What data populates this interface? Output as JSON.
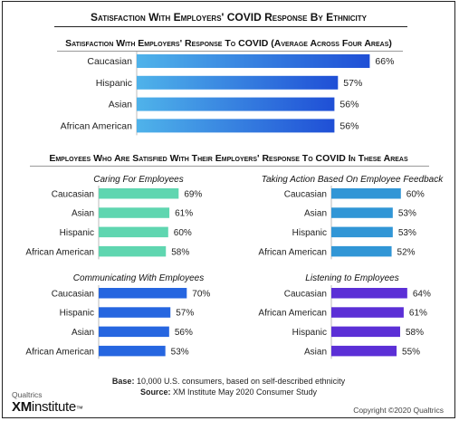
{
  "header": {
    "title": "Satisfaction With Employers' COVID Response By Ethnicity",
    "overall_title": "Satisfaction With Employers' Response To COVID (Average Across Four Areas)",
    "areas_title": "Employees Who Are Satisfied With Their Employers' Response To COVID In These Areas"
  },
  "colors": {
    "overall": "#1f4fd6",
    "caring": "#5fd6b0",
    "action": "#3196d6",
    "communicating": "#2666e0",
    "listening": "#5b2fd6"
  },
  "chart_data": [
    {
      "type": "bar",
      "orientation": "horizontal",
      "title": "Satisfaction With Employers' Response To COVID (Average Across Four Areas)",
      "categories": [
        "Caucasian",
        "Hispanic",
        "Asian",
        "African American"
      ],
      "values": [
        66,
        57,
        56,
        56
      ],
      "value_labels": [
        "66%",
        "57%",
        "56%",
        "56%"
      ]
    },
    {
      "type": "bar",
      "orientation": "horizontal",
      "title": "Caring For Employees",
      "categories": [
        "Caucasian",
        "Asian",
        "Hispanic",
        "African American"
      ],
      "values": [
        69,
        61,
        60,
        58
      ],
      "value_labels": [
        "69%",
        "61%",
        "60%",
        "58%"
      ]
    },
    {
      "type": "bar",
      "orientation": "horizontal",
      "title": "Taking Action Based On Employee Feedback",
      "categories": [
        "Caucasian",
        "Asian",
        "Hispanic",
        "African American"
      ],
      "values": [
        60,
        53,
        53,
        52
      ],
      "value_labels": [
        "60%",
        "53%",
        "53%",
        "52%"
      ]
    },
    {
      "type": "bar",
      "orientation": "horizontal",
      "title": "Communicating With Employees",
      "categories": [
        "Caucasian",
        "Hispanic",
        "Asian",
        "African American"
      ],
      "values": [
        70,
        57,
        56,
        53
      ],
      "value_labels": [
        "70%",
        "57%",
        "56%",
        "53%"
      ]
    },
    {
      "type": "bar",
      "orientation": "horizontal",
      "title": "Listening to Employees",
      "categories": [
        "Caucasian",
        "African American",
        "Hispanic",
        "Asian"
      ],
      "values": [
        64,
        61,
        58,
        55
      ],
      "value_labels": [
        "64%",
        "61%",
        "58%",
        "55%"
      ]
    }
  ],
  "footer": {
    "base_label": "Base:",
    "base_text": "10,000 U.S. consumers, based on self-described ethnicity",
    "source_label": "Source:",
    "source_text": "XM Institute May 2020 Consumer Study",
    "brand_top": "Qualtrics",
    "brand_xm": "XM",
    "brand_institute": "institute",
    "brand_tm": "™",
    "copyright": "Copyright ©2020 Qualtrics"
  }
}
